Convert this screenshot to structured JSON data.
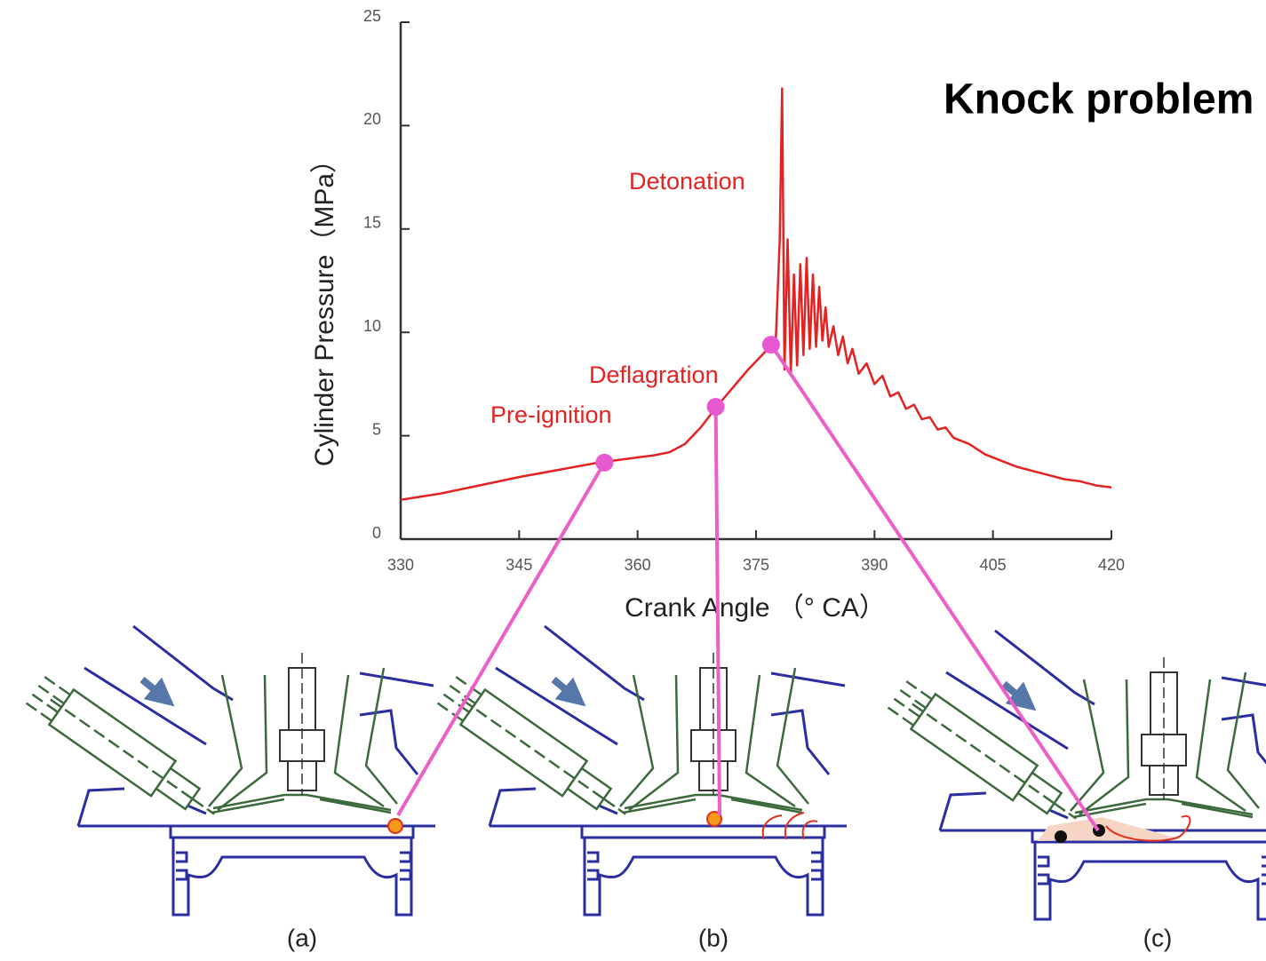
{
  "chart_data": {
    "type": "line",
    "title": "Knock problem",
    "x_label": "Crank Angle （° CA）",
    "y_label": "Cylinder Pressure（MPa）",
    "x": [
      330,
      335,
      340,
      345,
      350,
      355,
      358,
      360,
      362,
      364,
      366,
      368,
      370,
      372,
      374,
      376,
      377.5,
      378,
      378.3,
      378.6,
      379,
      379.4,
      379.8,
      380.2,
      380.6,
      381,
      381.4,
      381.8,
      382.2,
      382.6,
      383,
      383.4,
      383.8,
      384.2,
      384.8,
      385.4,
      386,
      386.6,
      387.2,
      388,
      389,
      390,
      391,
      392,
      393,
      394,
      395,
      396,
      397,
      398,
      399,
      400,
      402,
      404,
      406,
      408,
      410,
      412,
      414,
      416,
      418,
      420
    ],
    "values": [
      1.9,
      2.2,
      2.6,
      3.0,
      3.35,
      3.7,
      3.85,
      3.95,
      4.05,
      4.2,
      4.6,
      5.4,
      6.4,
      7.3,
      8.2,
      9.0,
      9.6,
      14.5,
      21.8,
      8.2,
      14.5,
      8.0,
      12.8,
      8.4,
      13.3,
      8.9,
      13.6,
      9.2,
      12.8,
      9.3,
      12.2,
      9.6,
      11.2,
      9.3,
      10.3,
      8.9,
      9.8,
      8.5,
      9.2,
      8.0,
      8.5,
      7.5,
      7.9,
      6.9,
      7.1,
      6.3,
      6.5,
      5.8,
      5.9,
      5.3,
      5.4,
      4.9,
      4.6,
      4.1,
      3.8,
      3.5,
      3.3,
      3.1,
      2.9,
      2.8,
      2.6,
      2.5
    ],
    "color": "#e42222",
    "points": {
      "x": [
        355.8,
        369.9,
        376.9
      ],
      "values": [
        3.7,
        6.4,
        9.4
      ],
      "color": "#e858d0"
    },
    "annotations": [
      "Pre-ignition",
      "Deflagration",
      "Detonation"
    ],
    "panels": [
      "(a)",
      "(b)",
      "(c)"
    ],
    "xlim": [
      330,
      420
    ],
    "xticks": [
      330,
      345,
      360,
      375,
      390,
      405,
      420
    ],
    "ylim": [
      0,
      25
    ],
    "yticks": [
      0,
      5,
      10,
      15,
      20,
      25
    ]
  }
}
